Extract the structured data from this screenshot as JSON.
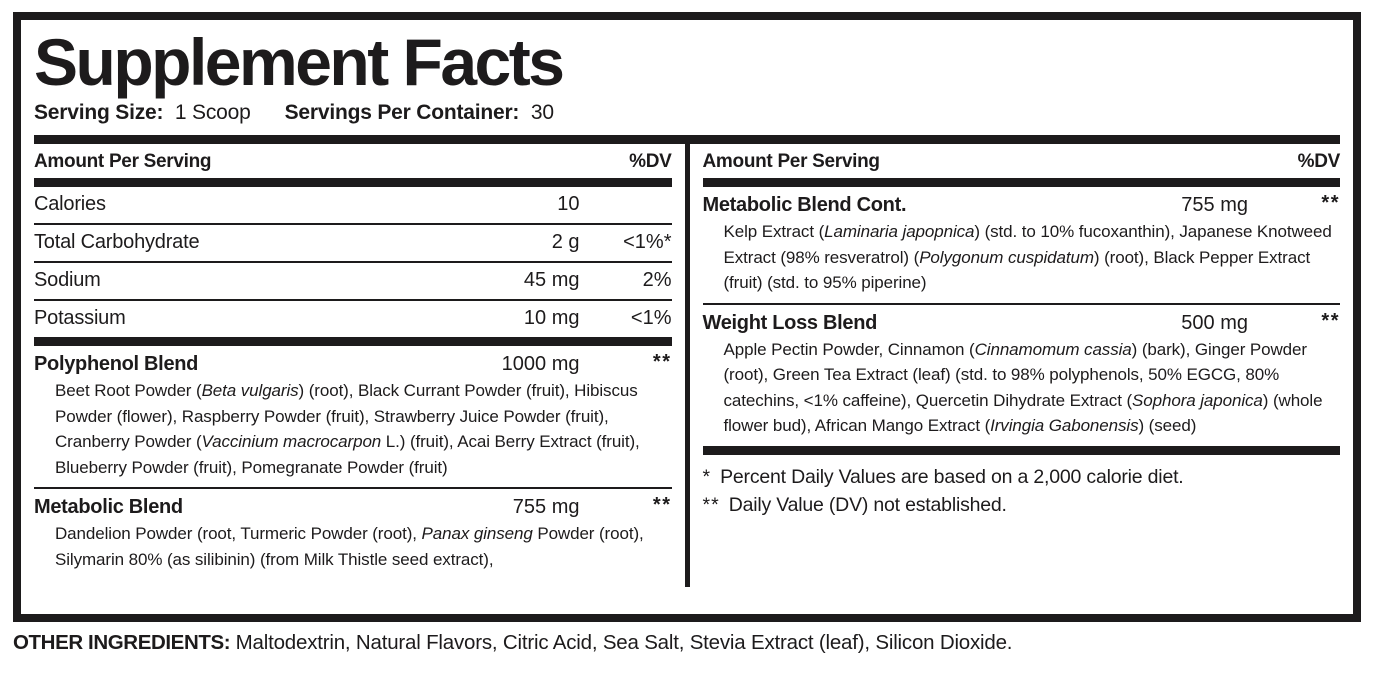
{
  "title": "Supplement Facts",
  "serving": {
    "size_label": "Serving Size:",
    "size_value": "1 Scoop",
    "container_label": "Servings Per Container:",
    "container_value": "30"
  },
  "table_header": {
    "amount_label": "Amount Per Serving",
    "dv_label": "%DV"
  },
  "left_column": {
    "nutrients": [
      {
        "name": "Calories",
        "amount": "10",
        "dv": ""
      },
      {
        "name": "Total Carbohydrate",
        "amount": "2 g",
        "dv": "<1%*"
      },
      {
        "name": "Sodium",
        "amount": "45 mg",
        "dv": "2%"
      },
      {
        "name": "Potassium",
        "amount": "10 mg",
        "dv": "<1%"
      }
    ],
    "blends": [
      {
        "name": "Polyphenol Blend",
        "amount": "1000 mg",
        "dv": "**",
        "ingredients": [
          {
            "text": "Beet Root Powder ("
          },
          {
            "text": "Beta vulgaris",
            "italic": true
          },
          {
            "text": ") (root), Black Currant Powder (fruit), Hibiscus Powder (flower), Raspberry Powder (fruit), Strawberry Juice Powder (fruit), Cranberry Powder ("
          },
          {
            "text": "Vaccinium macrocarpon",
            "italic": true
          },
          {
            "text": " L.) (fruit), Acai Berry Extract (fruit), Blueberry Powder (fruit), Pomegranate Powder (fruit)"
          }
        ]
      },
      {
        "name": "Metabolic Blend",
        "amount": "755 mg",
        "dv": "**",
        "ingredients": [
          {
            "text": "Dandelion Powder (root, Turmeric Powder (root), "
          },
          {
            "text": "Panax ginseng",
            "italic": true
          },
          {
            "text": " Powder (root), Silymarin 80% (as silibinin) (from Milk Thistle seed extract),"
          }
        ]
      }
    ]
  },
  "right_column": {
    "blends": [
      {
        "name": "Metabolic Blend Cont.",
        "amount": "755 mg",
        "dv": "**",
        "ingredients": [
          {
            "text": "Kelp Extract ("
          },
          {
            "text": "Laminaria japopnica",
            "italic": true
          },
          {
            "text": ") (std. to 10% fucoxanthin), Japanese Knotweed Extract (98% resveratrol) ("
          },
          {
            "text": "Polygonum cuspidatum",
            "italic": true
          },
          {
            "text": ") (root), Black Pepper Extract (fruit) (std. to 95% piperine)"
          }
        ]
      },
      {
        "name": "Weight Loss Blend",
        "amount": "500 mg",
        "dv": "**",
        "ingredients": [
          {
            "text": "Apple Pectin Powder, Cinnamon ("
          },
          {
            "text": "Cinnamomum cassia",
            "italic": true
          },
          {
            "text": ") (bark), Ginger Powder (root), Green Tea Extract (leaf) (std. to 98% polyphenols, 50% EGCG, 80% catechins, <1% caffeine), Quercetin Dihydrate Extract ("
          },
          {
            "text": "Sophora japonica",
            "italic": true
          },
          {
            "text": ") (whole flower bud), African Mango Extract ("
          },
          {
            "text": "Irvingia Gabonensis",
            "italic": true
          },
          {
            "text": ") (seed)"
          }
        ]
      }
    ],
    "footnotes": [
      {
        "marker": "*",
        "text": "Percent Daily Values are based on a 2,000 calorie diet."
      },
      {
        "marker": "**",
        "text": "Daily Value (DV) not established."
      }
    ]
  },
  "other_ingredients": {
    "label": "OTHER INGREDIENTS:",
    "value": "Maltodextrin, Natural Flavors, Citric Acid, Sea Salt, Stevia Extract (leaf), Silicon Dioxide."
  },
  "colors": {
    "ink": "#1d1b1c",
    "background": "#ffffff"
  }
}
